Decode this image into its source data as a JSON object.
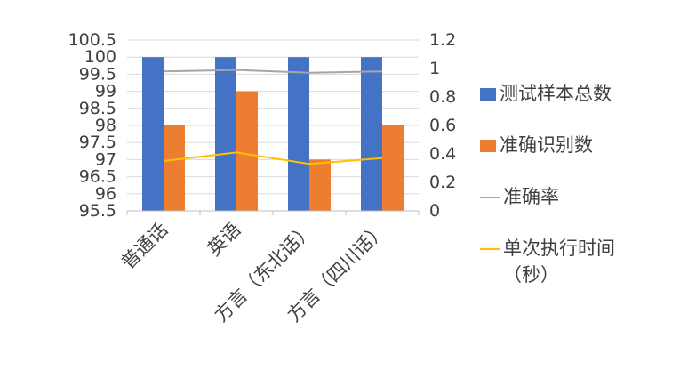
{
  "chart_data": {
    "type": "bar",
    "categories": [
      "普通话",
      "英语",
      "方言（东北话）",
      "方言（四川话）"
    ],
    "series": [
      {
        "name": "测试样本总数",
        "kind": "bar",
        "axis": "left",
        "color": "#4472C4",
        "values": [
          100,
          100,
          100,
          100
        ]
      },
      {
        "name": "准确识别数",
        "kind": "bar",
        "axis": "left",
        "color": "#ED7D31",
        "values": [
          98,
          99,
          97,
          98
        ]
      },
      {
        "name": "准确率",
        "kind": "line",
        "axis": "right",
        "color": "#A5A5A5",
        "values": [
          0.98,
          0.99,
          0.97,
          0.98
        ]
      },
      {
        "name": "单次执行时间（秒）",
        "kind": "line",
        "axis": "right",
        "color": "#FFC000",
        "values": [
          0.35,
          0.41,
          0.33,
          0.37
        ]
      }
    ],
    "ylim": [
      95.5,
      100.5
    ],
    "yticks": [
      "95.5",
      "96",
      "96.5",
      "97",
      "97.5",
      "98",
      "98.5",
      "99",
      "99.5",
      "100",
      "100.5"
    ],
    "y2lim": [
      0,
      1.2
    ],
    "y2ticks": [
      "0",
      "0.2",
      "0.4",
      "0.6",
      "0.8",
      "1",
      "1.2"
    ],
    "grid": true,
    "legend_position": "right"
  },
  "legend": {
    "items": [
      {
        "label": "测试样本总数",
        "shape": "box",
        "color": "#4472C4"
      },
      {
        "label": "准确识别数",
        "shape": "box",
        "color": "#ED7D31"
      },
      {
        "label": "准确率",
        "shape": "line",
        "color": "#A5A5A5"
      },
      {
        "label": "单次执行时间（秒）",
        "shape": "line",
        "color": "#FFC000"
      }
    ]
  }
}
